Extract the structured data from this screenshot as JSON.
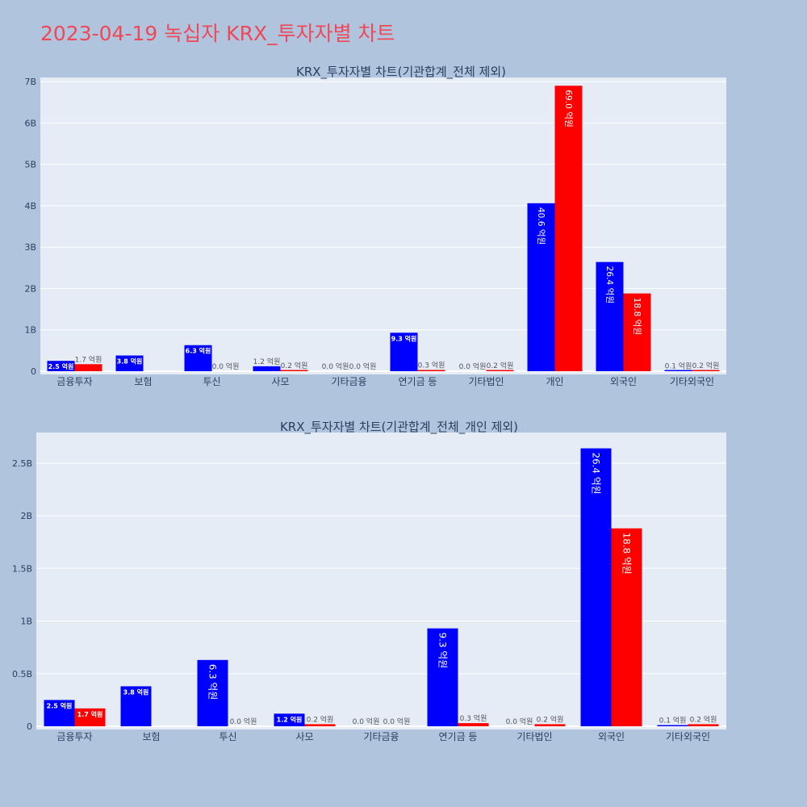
{
  "page": {
    "title": "2023-04-19 녹십자 KRX_투자자별 차트"
  },
  "colors": {
    "buy": "#0000ff",
    "sell": "#ff0000",
    "plot_bg": "#e5ecf6",
    "paper_bg": "#b0c4de",
    "title": "#ef4858"
  },
  "chart_data": [
    {
      "type": "bar",
      "title": "KRX_투자자별 차트(기관합계_전체 제외)",
      "categories": [
        "금융투자",
        "보험",
        "투신",
        "사모",
        "기타금융",
        "연기금 등",
        "기타법인",
        "개인",
        "외국인",
        "기타외국인"
      ],
      "series": [
        {
          "color": "#0000ff",
          "values": [
            250000000,
            380000000,
            630000000,
            120000000,
            0,
            930000000,
            0,
            4060000000,
            2640000000,
            10000000
          ],
          "labels": [
            "2.5 억원",
            "3.8 억원",
            "6.3 억원",
            "1.2 억원",
            "0.0 억원",
            "9.3 억원",
            "0.0 억원",
            "40.6 억원",
            "26.4 억원",
            "0.1 억원"
          ]
        },
        {
          "color": "#ff0000",
          "values": [
            170000000,
            0,
            0,
            20000000,
            0,
            30000000,
            20000000,
            6900000000,
            1880000000,
            20000000
          ],
          "labels": [
            "1.7 억원",
            "",
            "0.0 억원",
            "0.2 억원",
            "0.0 억원",
            "0.3 억원",
            "0.2 억원",
            "69.0 억원",
            "18.8 억원",
            "0.2 억원"
          ]
        }
      ],
      "ylim": [
        0,
        7100000000
      ],
      "yticks": [
        0,
        1000000000,
        2000000000,
        3000000000,
        4000000000,
        5000000000,
        6000000000,
        7000000000
      ],
      "yticklabels": [
        "0",
        "1B",
        "2B",
        "3B",
        "4B",
        "5B",
        "6B",
        "7B"
      ],
      "grid": true,
      "legend": "none"
    },
    {
      "type": "bar",
      "title": "KRX_투자자별 차트(기관합계_전체_개인 제외)",
      "categories": [
        "금융투자",
        "보험",
        "투신",
        "사모",
        "기타금융",
        "연기금 등",
        "기타법인",
        "외국인",
        "기타외국인"
      ],
      "series": [
        {
          "color": "#0000ff",
          "values": [
            250000000,
            380000000,
            630000000,
            120000000,
            0,
            930000000,
            0,
            2640000000,
            10000000
          ],
          "labels": [
            "2.5 억원",
            "3.8 억원",
            "6.3 억원",
            "1.2 억원",
            "0.0 억원",
            "9.3 억원",
            "0.0 억원",
            "26.4 억원",
            "0.1 억원"
          ]
        },
        {
          "color": "#ff0000",
          "values": [
            170000000,
            0,
            0,
            20000000,
            0,
            30000000,
            20000000,
            1880000000,
            20000000
          ],
          "labels": [
            "1.7 억원",
            "",
            "0.0 억원",
            "0.2 억원",
            "0.0 억원",
            "0.3 억원",
            "0.2 억원",
            "18.8 억원",
            "0.2 억원"
          ]
        }
      ],
      "ylim": [
        0,
        2790000000
      ],
      "yticks": [
        0,
        500000000,
        1000000000,
        1500000000,
        2000000000,
        2500000000
      ],
      "yticklabels": [
        "0",
        "0.5B",
        "1B",
        "1.5B",
        "2B",
        "2.5B"
      ],
      "grid": true,
      "legend": "none"
    }
  ]
}
